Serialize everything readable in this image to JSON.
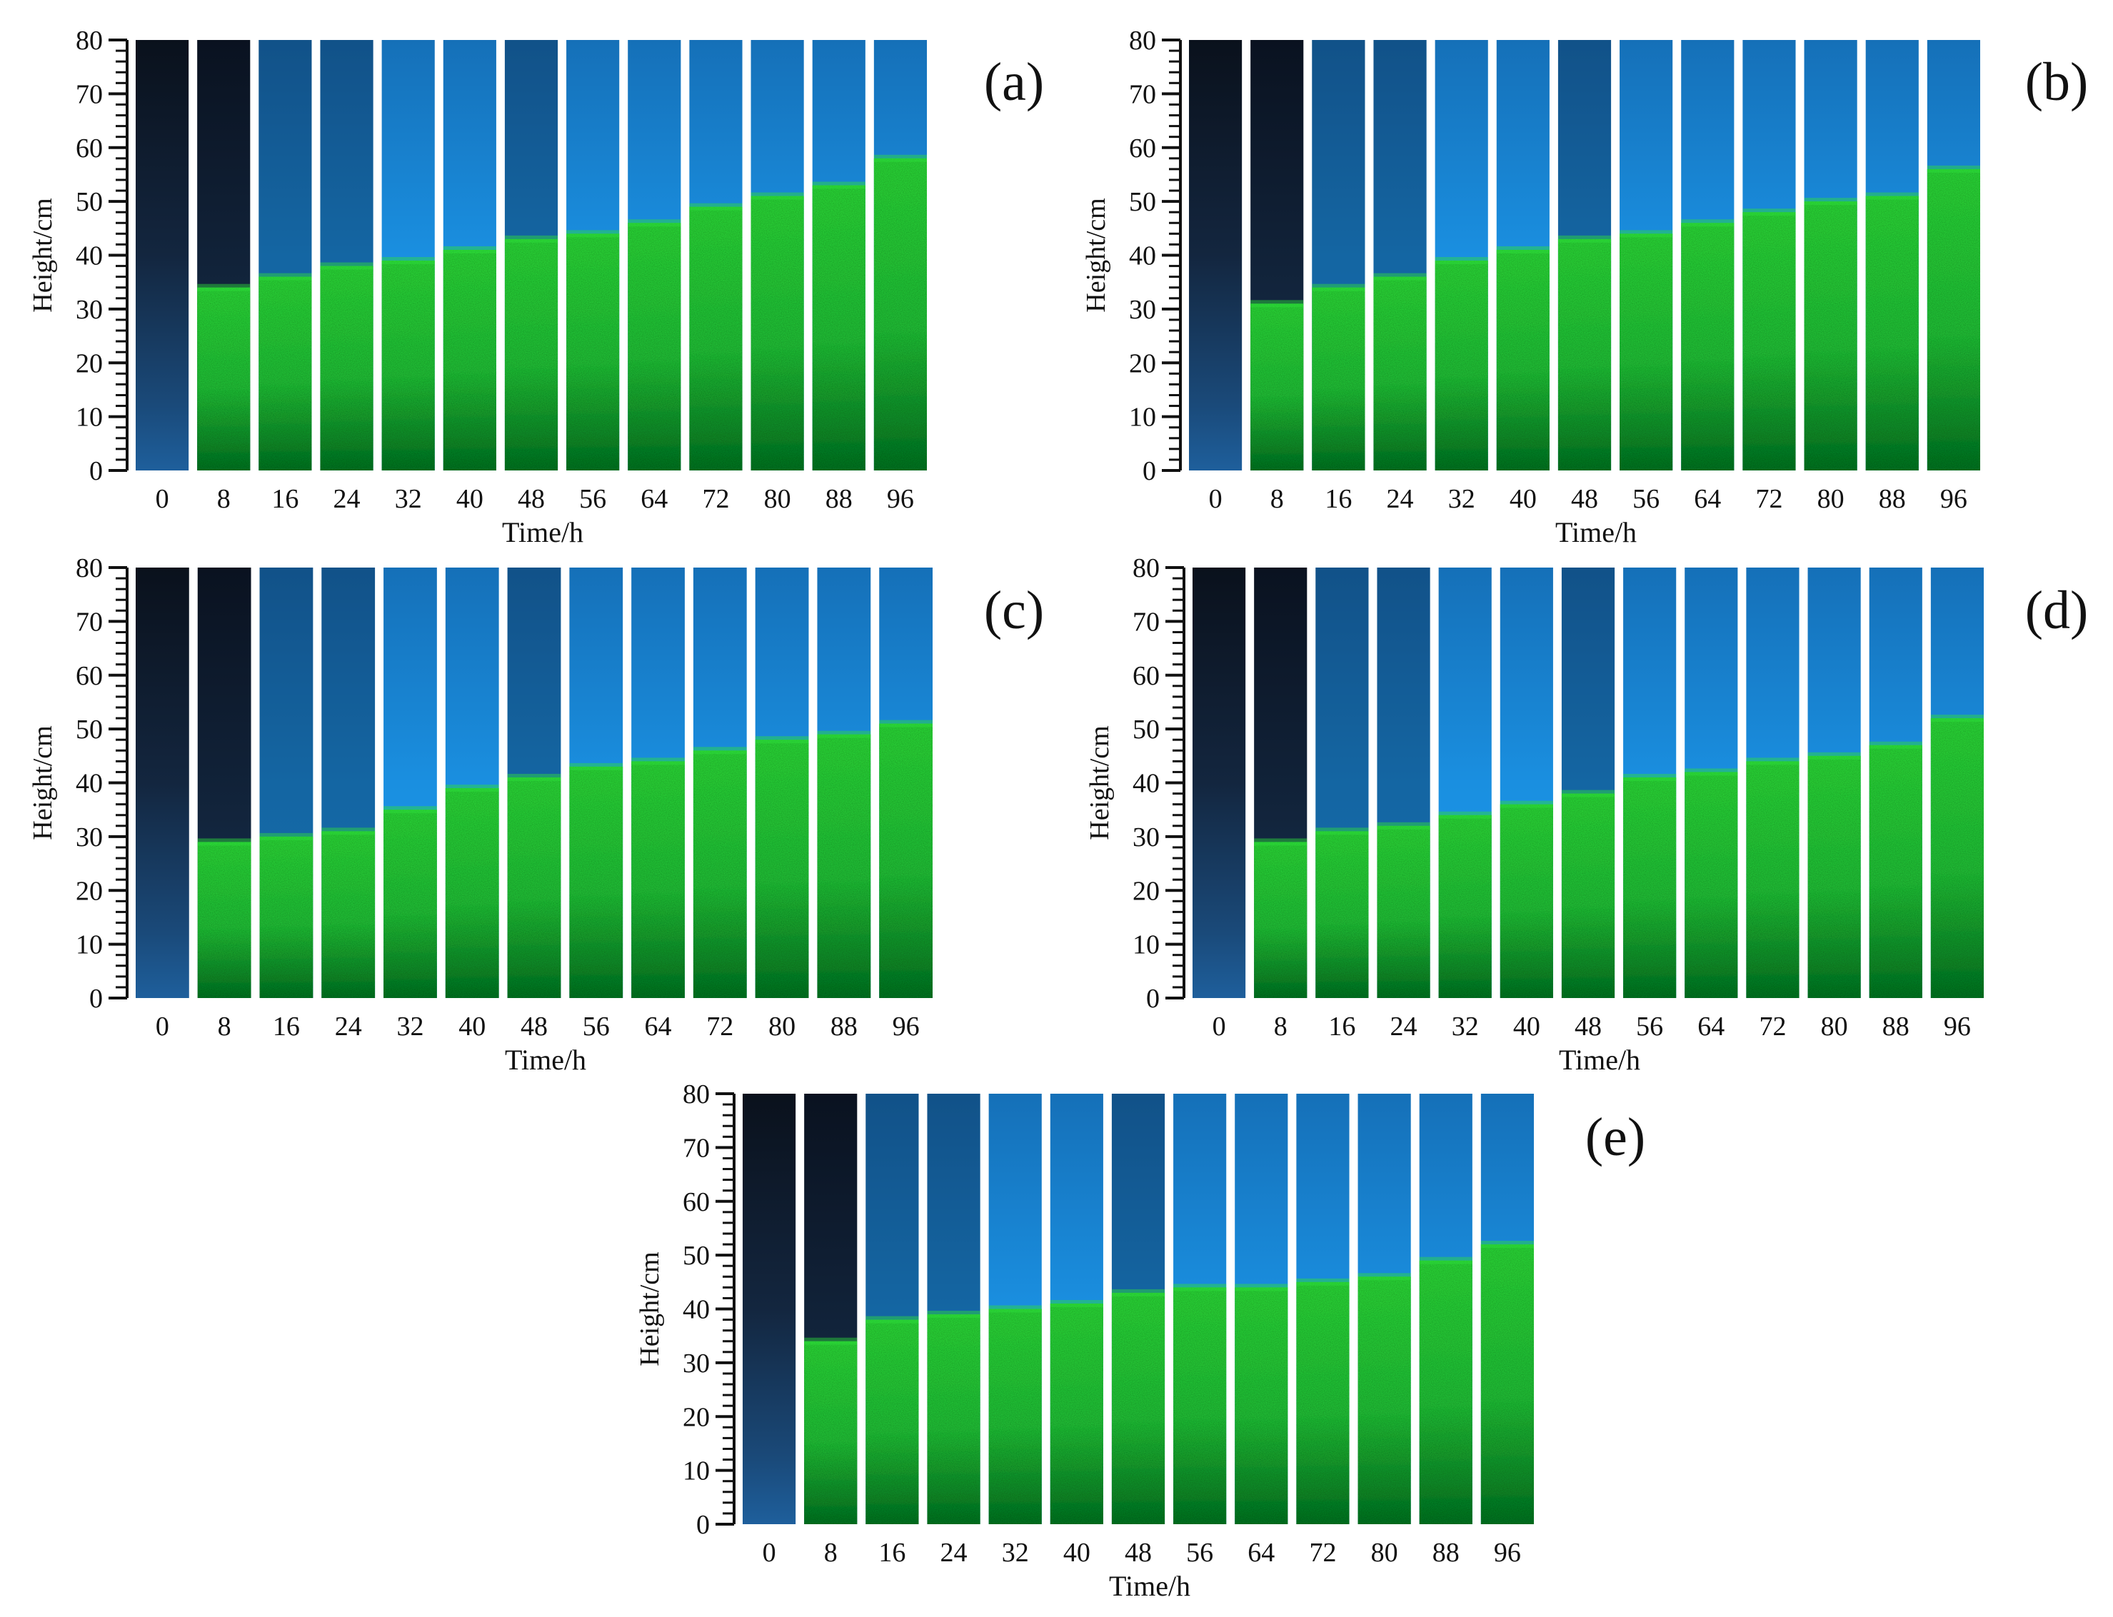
{
  "figure": {
    "x_label": "Time/h",
    "y_label": "Height/cm",
    "colors": {
      "background": "#ffffff",
      "axis": "#111111",
      "water_dark": "#0e1a2c",
      "water_blue": "#1a8fe0",
      "water_mid": "#1570b8",
      "sediment_bright": "#2fe03a",
      "sediment_dark": "#0c7a26"
    }
  },
  "chart_data": [
    {
      "type": "image-strip",
      "panel": "(a)",
      "title": "(a)",
      "xlabel": "Time/h",
      "ylabel": "Height/cm",
      "ylim": [
        0,
        80
      ],
      "y_ticks": [
        "0",
        "10",
        "20",
        "30",
        "40",
        "50",
        "60",
        "70",
        "80"
      ],
      "categories": [
        "0",
        "8",
        "16",
        "24",
        "32",
        "40",
        "48",
        "56",
        "64",
        "72",
        "80",
        "88",
        "96"
      ],
      "series": [
        {
          "name": "interface height (cm)",
          "values": [
            0,
            34,
            36,
            38,
            39,
            41,
            43,
            44,
            46,
            49,
            51,
            53,
            58
          ]
        }
      ]
    },
    {
      "type": "image-strip",
      "panel": "(b)",
      "title": "(b)",
      "xlabel": "Time/h",
      "ylabel": "Height/cm",
      "ylim": [
        0,
        80
      ],
      "y_ticks": [
        "0",
        "10",
        "20",
        "30",
        "40",
        "50",
        "60",
        "70",
        "80"
      ],
      "categories": [
        "0",
        "8",
        "16",
        "24",
        "32",
        "40",
        "48",
        "56",
        "64",
        "72",
        "80",
        "88",
        "96"
      ],
      "series": [
        {
          "name": "interface height (cm)",
          "values": [
            0,
            31,
            34,
            36,
            39,
            41,
            43,
            44,
            46,
            48,
            50,
            51,
            56
          ]
        }
      ]
    },
    {
      "type": "image-strip",
      "panel": "(c)",
      "title": "(c)",
      "xlabel": "Time/h",
      "ylabel": "Height/cm",
      "ylim": [
        0,
        80
      ],
      "y_ticks": [
        "0",
        "10",
        "20",
        "30",
        "40",
        "50",
        "60",
        "70",
        "80"
      ],
      "categories": [
        "0",
        "8",
        "16",
        "24",
        "32",
        "40",
        "48",
        "56",
        "64",
        "72",
        "80",
        "88",
        "96"
      ],
      "series": [
        {
          "name": "interface height (cm)",
          "values": [
            0,
            29,
            30,
            31,
            35,
            39,
            41,
            43,
            44,
            46,
            48,
            49,
            51
          ]
        }
      ]
    },
    {
      "type": "image-strip",
      "panel": "(d)",
      "title": "(d)",
      "xlabel": "Time/h",
      "ylabel": "Height/cm",
      "ylim": [
        0,
        80
      ],
      "y_ticks": [
        "0",
        "10",
        "20",
        "30",
        "40",
        "50",
        "60",
        "70",
        "80"
      ],
      "categories": [
        "0",
        "8",
        "16",
        "24",
        "32",
        "40",
        "48",
        "56",
        "64",
        "72",
        "80",
        "88",
        "96"
      ],
      "series": [
        {
          "name": "interface height (cm)",
          "values": [
            0,
            29,
            31,
            32,
            34,
            36,
            38,
            41,
            42,
            44,
            45,
            47,
            52
          ]
        }
      ]
    },
    {
      "type": "image-strip",
      "panel": "(e)",
      "title": "(e)",
      "xlabel": "Time/h",
      "ylabel": "Height/cm",
      "ylim": [
        0,
        80
      ],
      "y_ticks": [
        "0",
        "10",
        "20",
        "30",
        "40",
        "50",
        "60",
        "70",
        "80"
      ],
      "categories": [
        "0",
        "8",
        "16",
        "24",
        "32",
        "40",
        "48",
        "56",
        "64",
        "72",
        "80",
        "88",
        "96"
      ],
      "series": [
        {
          "name": "interface height (cm)",
          "values": [
            0,
            34,
            38,
            39,
            40,
            41,
            43,
            44,
            44,
            45,
            46,
            49,
            52
          ]
        }
      ]
    }
  ]
}
